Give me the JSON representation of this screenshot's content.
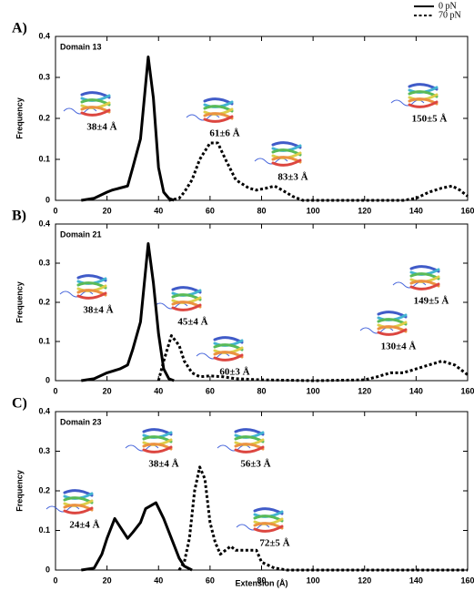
{
  "legend": [
    {
      "name": "0 pN",
      "style": "solid"
    },
    {
      "name": "70 pN",
      "style": "dotted"
    }
  ],
  "chart_data": [
    {
      "type": "line",
      "panel": "A)",
      "title": "Domain 13",
      "y_label": "Frequency",
      "xlim": [
        0,
        160
      ],
      "ylim": [
        0,
        0.4
      ],
      "xticks": [
        0,
        20,
        40,
        60,
        80,
        100,
        120,
        140,
        160
      ],
      "yticks": [
        0,
        0.1,
        0.2,
        0.3,
        0.4
      ],
      "series": [
        {
          "style": "solid",
          "color": "#000000",
          "x": [
            10,
            15,
            20,
            22,
            25,
            28,
            30,
            33,
            36,
            38,
            40,
            42,
            44,
            46
          ],
          "values": [
            0,
            0.005,
            0.02,
            0.025,
            0.03,
            0.035,
            0.08,
            0.15,
            0.35,
            0.25,
            0.08,
            0.02,
            0.005,
            0
          ]
        },
        {
          "style": "dotted",
          "color": "#000000",
          "x": [
            44,
            48,
            50,
            53,
            56,
            60,
            63,
            66,
            70,
            75,
            78,
            82,
            85,
            88,
            92,
            96,
            135,
            140,
            145,
            150,
            154,
            157,
            160
          ],
          "values": [
            0,
            0.005,
            0.02,
            0.05,
            0.1,
            0.14,
            0.14,
            0.1,
            0.05,
            0.03,
            0.025,
            0.03,
            0.035,
            0.025,
            0.01,
            0,
            0,
            0.005,
            0.02,
            0.03,
            0.035,
            0.025,
            0.01
          ]
        }
      ],
      "annotations": [
        "38±4 Å",
        "61±6 Å",
        "83±3 Å",
        "150±5 Å"
      ]
    },
    {
      "type": "line",
      "panel": "B)",
      "title": "Domain 21",
      "y_label": "Frequency",
      "xlim": [
        0,
        160
      ],
      "ylim": [
        0,
        0.4
      ],
      "xticks": [
        0,
        20,
        40,
        60,
        80,
        100,
        120,
        140,
        160
      ],
      "yticks": [
        0,
        0.1,
        0.2,
        0.3,
        0.4
      ],
      "series": [
        {
          "style": "solid",
          "color": "#000000",
          "x": [
            10,
            15,
            20,
            25,
            28,
            30,
            33,
            36,
            38,
            40,
            42,
            44,
            46
          ],
          "values": [
            0,
            0.005,
            0.02,
            0.03,
            0.04,
            0.08,
            0.15,
            0.35,
            0.25,
            0.12,
            0.03,
            0.005,
            0
          ]
        },
        {
          "style": "dotted",
          "color": "#000000",
          "x": [
            40,
            42,
            45,
            48,
            50,
            53,
            56,
            60,
            65,
            70,
            80,
            100,
            120,
            125,
            130,
            135,
            140,
            145,
            150,
            155,
            160
          ],
          "values": [
            0,
            0.05,
            0.115,
            0.09,
            0.05,
            0.02,
            0.01,
            0.012,
            0.01,
            0.005,
            0.002,
            0,
            0.002,
            0.01,
            0.02,
            0.02,
            0.03,
            0.04,
            0.05,
            0.04,
            0.015
          ]
        }
      ],
      "annotations": [
        "38±4 Å",
        "45±4 Å",
        "60±3 Å",
        "130±4 Å",
        "149±5 Å"
      ]
    },
    {
      "type": "line",
      "panel": "C)",
      "title": "Domain 23",
      "y_label": "Frequency",
      "x_label": "Extension (Å)",
      "xlim": [
        0,
        160
      ],
      "ylim": [
        0,
        0.4
      ],
      "xticks": [
        0,
        20,
        40,
        60,
        80,
        100,
        120,
        140,
        160
      ],
      "yticks": [
        0,
        0.1,
        0.2,
        0.3,
        0.4
      ],
      "series": [
        {
          "style": "solid",
          "color": "#000000",
          "x": [
            10,
            15,
            18,
            20,
            23,
            25,
            28,
            30,
            33,
            35,
            39,
            42,
            45,
            48,
            50,
            53
          ],
          "values": [
            0,
            0.005,
            0.04,
            0.08,
            0.13,
            0.11,
            0.08,
            0.095,
            0.12,
            0.155,
            0.17,
            0.13,
            0.08,
            0.03,
            0.01,
            0
          ]
        },
        {
          "style": "dotted",
          "color": "#000000",
          "x": [
            48,
            50,
            52,
            54,
            56,
            58,
            60,
            62,
            64,
            66,
            68,
            70,
            75,
            78,
            80,
            85,
            90,
            160
          ],
          "values": [
            0,
            0.02,
            0.08,
            0.2,
            0.26,
            0.23,
            0.12,
            0.07,
            0.04,
            0.05,
            0.06,
            0.05,
            0.05,
            0.05,
            0.02,
            0.005,
            0,
            0
          ]
        }
      ],
      "annotations": [
        "38±4 Å",
        "56±3 Å",
        "24±4 Å",
        "72±5 Å"
      ]
    }
  ]
}
